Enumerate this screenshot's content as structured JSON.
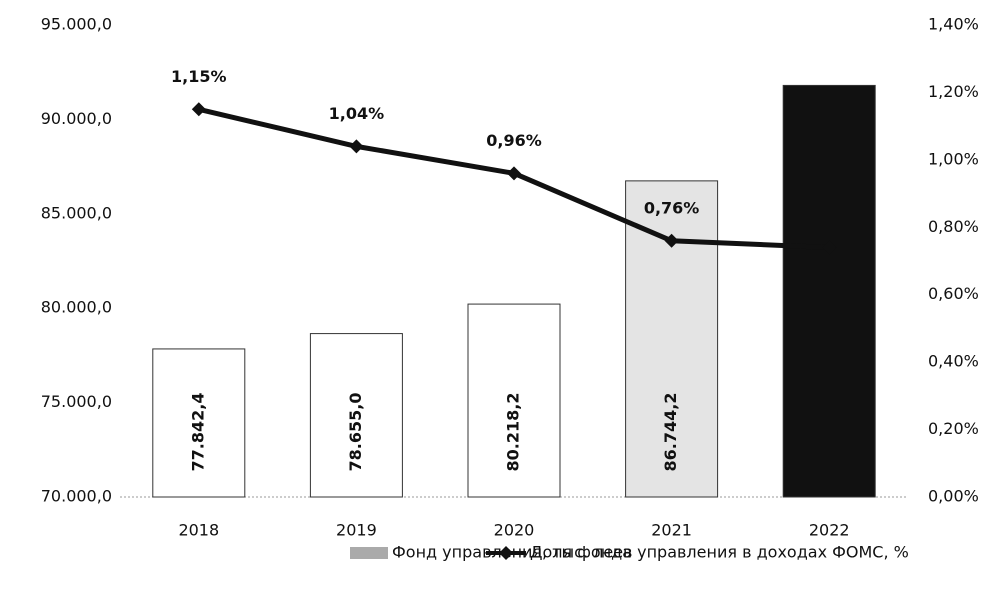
{
  "chart_data": {
    "type": "bar",
    "categories": [
      "2018",
      "2019",
      "2020",
      "2021",
      "2022"
    ],
    "series": [
      {
        "name": "Фонд управления, тыс. леев",
        "type": "bar",
        "colors": [
          "#ffffff",
          "#ffffff",
          "#ffffff",
          "#e4e4e4",
          "#111111"
        ],
        "values": [
          77842.4,
          78655.0,
          80218.2,
          86744.2,
          91800
        ],
        "value_labels": [
          "77.842,4",
          "78.655,0",
          "80.218,2",
          "86.744,2",
          null
        ]
      },
      {
        "name": "Доля фонда управления в доходах ФОМС, %",
        "type": "line",
        "axis": "y2",
        "color": "#111111",
        "values": [
          1.15,
          1.04,
          0.96,
          0.76,
          0.74
        ],
        "value_labels": [
          "1,15%",
          "1,04%",
          "0,96%",
          "0,76%",
          null
        ]
      }
    ],
    "ylim": [
      70000,
      95000
    ],
    "yticks": [
      {
        "value": 70000,
        "label": "70.000,0"
      },
      {
        "value": 75000,
        "label": "75.000,0"
      },
      {
        "value": 80000,
        "label": "80.000,0"
      },
      {
        "value": 85000,
        "label": "85.000,0"
      },
      {
        "value": 90000,
        "label": "90.000,0"
      },
      {
        "value": 95000,
        "label": "95.000,0"
      }
    ],
    "y2lim": [
      0,
      1.4
    ],
    "y2ticks": [
      {
        "value": 0,
        "label": "0,00%"
      },
      {
        "value": 0.2,
        "label": "0,20%"
      },
      {
        "value": 0.4,
        "label": "0,40%"
      },
      {
        "value": 0.6,
        "label": "0,60%"
      },
      {
        "value": 0.8,
        "label": "0,80%"
      },
      {
        "value": 1.0,
        "label": "1,00%"
      },
      {
        "value": 1.2,
        "label": "1,20%"
      },
      {
        "value": 1.4,
        "label": "1,40%"
      }
    ],
    "legend": "bottom"
  }
}
